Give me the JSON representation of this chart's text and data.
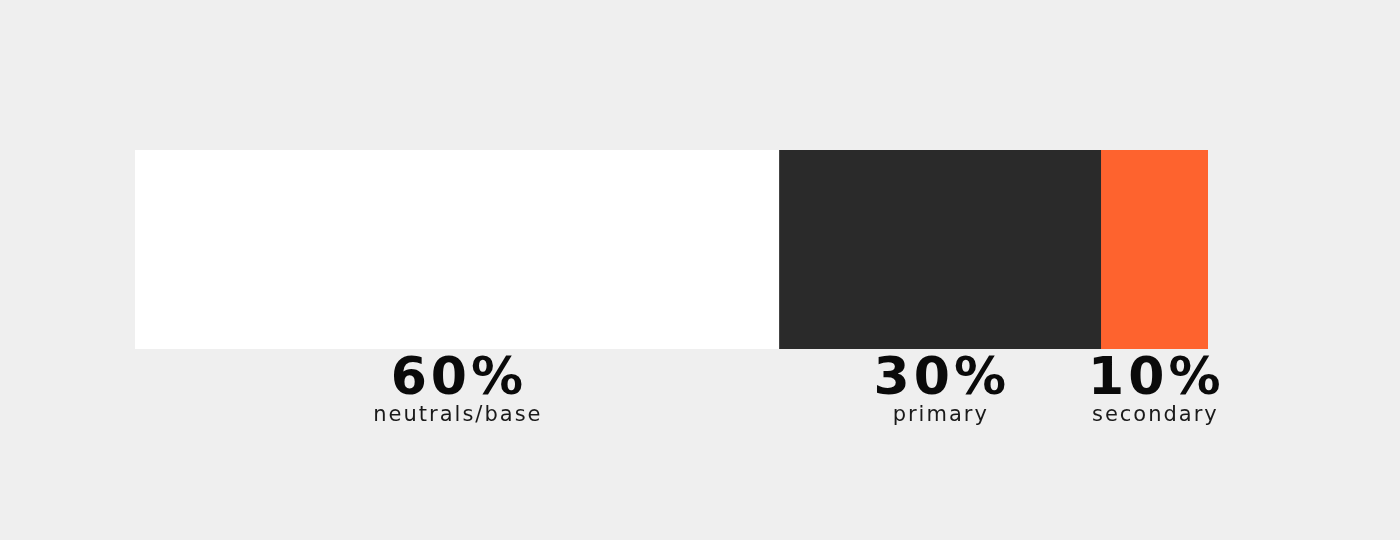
{
  "chart_data": {
    "type": "bar",
    "orientation": "horizontal",
    "stacked": true,
    "categories": [
      null
    ],
    "series": [
      {
        "name": "neutrals/base",
        "color": "#ffffff",
        "values": [
          60
        ],
        "value_labels": [
          "60%"
        ]
      },
      {
        "name": "primary",
        "color": "#2a2a2a",
        "values": [
          30
        ],
        "value_labels": [
          "30%"
        ]
      },
      {
        "name": "secondary",
        "color": "#fe632e",
        "values": [
          10
        ],
        "value_labels": [
          "10%"
        ]
      }
    ],
    "tick_labels": false,
    "grid": false,
    "legend": false
  }
}
